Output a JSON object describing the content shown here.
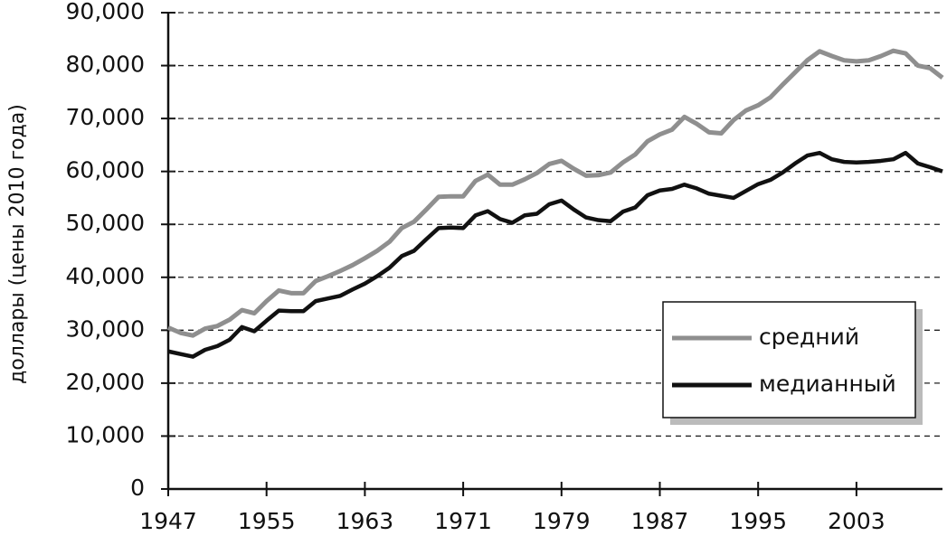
{
  "chart_data": {
    "type": "line",
    "y_label": "доллары (цены 2010 года)",
    "x": [
      1947,
      1948,
      1949,
      1950,
      1951,
      1952,
      1953,
      1954,
      1955,
      1956,
      1957,
      1958,
      1959,
      1960,
      1961,
      1962,
      1963,
      1964,
      1965,
      1966,
      1967,
      1968,
      1969,
      1970,
      1971,
      1972,
      1973,
      1974,
      1975,
      1976,
      1977,
      1978,
      1979,
      1980,
      1981,
      1982,
      1983,
      1984,
      1985,
      1986,
      1987,
      1988,
      1989,
      1990,
      1991,
      1992,
      1993,
      1994,
      1995,
      1996,
      1997,
      1998,
      1999,
      2000,
      2001,
      2002,
      2003,
      2004,
      2005,
      2006,
      2007,
      2008,
      2009,
      2010
    ],
    "series": [
      {
        "name": "средний",
        "color": "#8f8f8f",
        "values": [
          30500,
          29500,
          29000,
          30300,
          30800,
          32000,
          33800,
          33200,
          35500,
          37500,
          37000,
          37000,
          39300,
          40200,
          41200,
          42300,
          43600,
          45000,
          46700,
          49300,
          50500,
          52800,
          55200,
          55300,
          55300,
          58200,
          59400,
          57500,
          57500,
          58500,
          59700,
          61400,
          62000,
          60500,
          59200,
          59300,
          59800,
          61700,
          63200,
          65700,
          67000,
          67900,
          70300,
          69000,
          67400,
          67200,
          69700,
          71500,
          72500,
          74000,
          76400,
          78700,
          81000,
          82700,
          81800,
          81000,
          80800,
          81000,
          81800,
          82800,
          82300,
          80000,
          79500,
          77700
        ]
      },
      {
        "name": "медианный",
        "color": "#111111",
        "values": [
          26000,
          25500,
          25000,
          26300,
          27000,
          28200,
          30600,
          29800,
          31800,
          33700,
          33600,
          33600,
          35500,
          36000,
          36500,
          37700,
          38800,
          40200,
          41800,
          44000,
          45000,
          47200,
          49300,
          49400,
          49300,
          51700,
          52500,
          51000,
          50300,
          51700,
          52000,
          53800,
          54500,
          52800,
          51300,
          50800,
          50600,
          52400,
          53200,
          55500,
          56400,
          56700,
          57500,
          56800,
          55800,
          55400,
          55000,
          56300,
          57600,
          58400,
          59800,
          61500,
          63000,
          63500,
          62300,
          61800,
          61700,
          61800,
          62000,
          62300,
          63500,
          61500,
          60800,
          60000
        ]
      }
    ],
    "xlim": [
      1947,
      2010
    ],
    "xticks": [
      1947,
      1955,
      1963,
      1971,
      1979,
      1987,
      1995,
      2003
    ],
    "ylim": [
      0,
      90000
    ],
    "yticks": [
      0,
      {
        "value": 10000,
        "label": "10,000"
      },
      {
        "value": 20000,
        "label": "20,000"
      },
      {
        "value": 30000,
        "label": "30,000"
      },
      {
        "value": 40000,
        "label": "40,000"
      },
      {
        "value": 50000,
        "label": "50,000"
      },
      {
        "value": 60000,
        "label": "60,000"
      },
      {
        "value": 70000,
        "label": "70,000"
      },
      {
        "value": 80000,
        "label": "80,000"
      },
      {
        "value": 90000,
        "label": "90,000"
      }
    ],
    "grid": true,
    "legend_position": "lower right"
  }
}
